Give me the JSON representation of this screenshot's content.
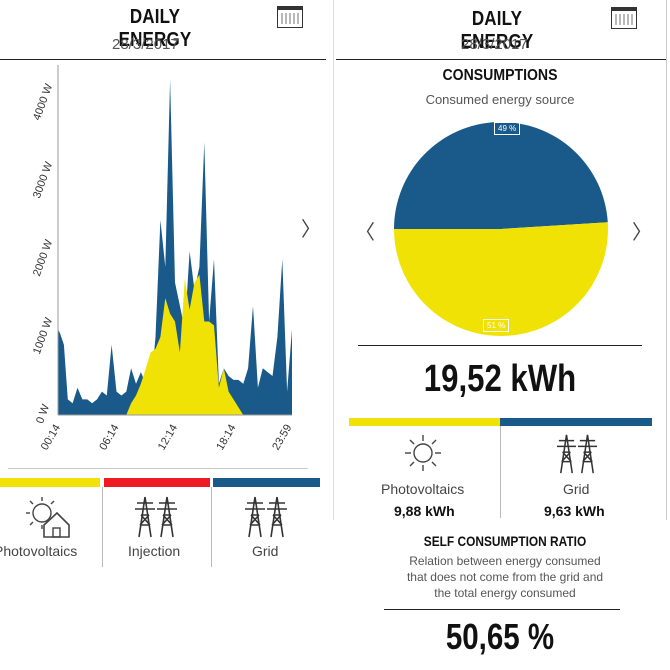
{
  "colors": {
    "pv": "#f1e205",
    "grid": "#1a5a8a",
    "injection": "#ee1b24"
  },
  "left": {
    "title": "DAILY ENERGY",
    "date": "28/3/2017",
    "calendar_icon": "calendar-icon",
    "next_icon": "chevron-right-icon",
    "legend": [
      {
        "label": "Photovoltaics",
        "icon": "solar-house-icon",
        "color": "#f1e205"
      },
      {
        "label": "Injection",
        "icon": "pylon-icon",
        "color": "#ee1b24"
      },
      {
        "label": "Grid",
        "icon": "pylon-icon",
        "color": "#1a5a8a"
      }
    ]
  },
  "right": {
    "title": "DAILY ENERGY",
    "date": "28/3/2017",
    "section_title": "CONSUMPTIONS",
    "section_subtitle": "Consumed energy source",
    "pie_top_label": "49 %",
    "pie_bottom_label": "51 %",
    "total": "19,52 kWh",
    "items": [
      {
        "label": "Photovoltaics",
        "value": "9,88 kWh",
        "icon": "sun-icon"
      },
      {
        "label": "Grid",
        "value": "9,63 kWh",
        "icon": "pylon-icon"
      }
    ],
    "ratio_title": "SELF CONSUMPTION RATIO",
    "ratio_lines": [
      "Relation between energy consumed",
      "that does not come from the grid and",
      "the total energy consumed"
    ],
    "ratio_value": "50,65 %"
  },
  "chart_data": [
    {
      "type": "area",
      "xlabel": "",
      "ylabel": "",
      "x_ticks": [
        "00:14",
        "06:14",
        "12:14",
        "18:14",
        "23:59"
      ],
      "y_ticks": [
        "0 W",
        "1000 W",
        "2000 W",
        "3000 W",
        "4000 W"
      ],
      "ylim": [
        0,
        4400
      ],
      "x_range": [
        0,
        24
      ],
      "series": [
        {
          "name": "Grid",
          "color": "#1a5a8a",
          "x": [
            0,
            0.2,
            0.6,
            1,
            1.5,
            2,
            2.5,
            3,
            3.5,
            4,
            4.5,
            5,
            5.5,
            6,
            6.5,
            7,
            7.5,
            8,
            8.5,
            9,
            9.5,
            10,
            10.5,
            11,
            11.5,
            12,
            12.5,
            13,
            13.5,
            14,
            14.5,
            15,
            15.5,
            16,
            16.5,
            17,
            17.5,
            18,
            18.5,
            19,
            19.5,
            20,
            20.5,
            21,
            21.5,
            22,
            22.5,
            23,
            23.5,
            24
          ],
          "y": [
            1100,
            1050,
            900,
            200,
            150,
            350,
            200,
            200,
            150,
            200,
            300,
            250,
            900,
            300,
            250,
            300,
            600,
            400,
            550,
            400,
            300,
            1000,
            2500,
            1900,
            4300,
            1700,
            1400,
            1100,
            2100,
            1600,
            1900,
            3500,
            1200,
            2000,
            400,
            600,
            500,
            450,
            450,
            400,
            600,
            1400,
            350,
            600,
            550,
            500,
            1000,
            2000,
            300,
            1100
          ]
        },
        {
          "name": "Photovoltaics",
          "color": "#f1e205",
          "x": [
            0,
            5,
            6,
            6.5,
            7,
            7.5,
            8,
            8.5,
            9,
            9.5,
            10,
            10.5,
            11,
            11.5,
            12,
            12.5,
            13,
            13.5,
            14,
            14.5,
            15,
            15.5,
            16,
            16.5,
            17,
            17.5,
            18,
            18.5,
            19,
            24
          ],
          "y": [
            0,
            0,
            0,
            0,
            0,
            150,
            250,
            400,
            600,
            800,
            850,
            1000,
            1500,
            1300,
            1200,
            800,
            1750,
            1350,
            1700,
            1800,
            1200,
            1200,
            1150,
            350,
            600,
            300,
            200,
            100,
            0,
            0
          ]
        }
      ]
    },
    {
      "type": "pie",
      "categories": [
        "Grid",
        "Photovoltaics"
      ],
      "values": [
        49,
        51
      ],
      "colors": [
        "#1a5a8a",
        "#f1e205"
      ]
    }
  ]
}
